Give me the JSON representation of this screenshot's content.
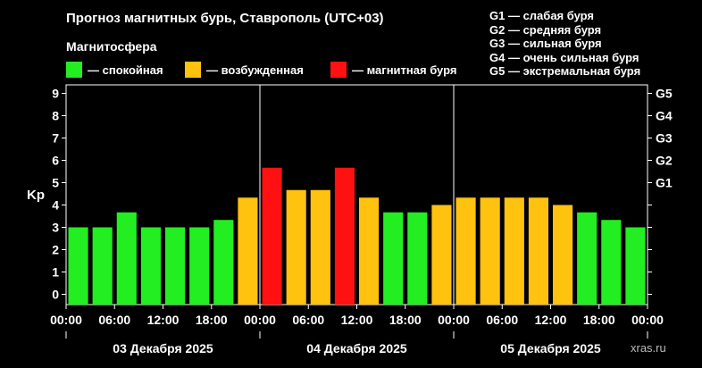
{
  "title": "Прогноз магнитных бурь, Ставрополь (UTC+03)",
  "subtitle": "Магнитосфера",
  "legend": [
    {
      "label": "— спокойная",
      "color": "#22ee22"
    },
    {
      "label": "— возбужденная",
      "color": "#ffc20e"
    },
    {
      "label": "— магнитная буря",
      "color": "#ff1111"
    }
  ],
  "g_scale": [
    {
      "label": "G1 — слабая буря"
    },
    {
      "label": "G2 — средняя буря"
    },
    {
      "label": "G3 — сильная буря"
    },
    {
      "label": "G4 — очень сильная буря"
    },
    {
      "label": "G5 — экстремальная буря"
    }
  ],
  "watermark": "xras.ru",
  "chart_data": {
    "type": "bar",
    "ylabel": "Kp",
    "ylim": [
      0,
      9.5
    ],
    "y_ticks": [
      "0",
      "1",
      "2",
      "3",
      "4",
      "5",
      "6",
      "7",
      "8",
      "9"
    ],
    "right_ticks": [
      {
        "label": "G1",
        "value": 5
      },
      {
        "label": "G2",
        "value": 6
      },
      {
        "label": "G3",
        "value": 7
      },
      {
        "label": "G4",
        "value": 8
      },
      {
        "label": "G5",
        "value": 9
      }
    ],
    "x_ticks": [
      "00:00",
      "06:00",
      "12:00",
      "18:00",
      "00:00",
      "06:00",
      "12:00",
      "18:00",
      "00:00",
      "06:00",
      "12:00",
      "18:00",
      "00:00"
    ],
    "days": [
      "03 Декабря 2025",
      "04 Декабря 2025",
      "05 Декабря 2025"
    ],
    "values": [
      3.0,
      3.0,
      3.67,
      3.0,
      3.0,
      3.0,
      3.33,
      4.33,
      5.67,
      4.67,
      4.67,
      5.67,
      4.33,
      3.67,
      3.67,
      4.0,
      4.33,
      4.33,
      4.33,
      4.33,
      4.0,
      3.67,
      3.33,
      3.0
    ],
    "levels": [
      "quiet",
      "quiet",
      "quiet",
      "quiet",
      "quiet",
      "quiet",
      "quiet",
      "active",
      "storm",
      "active",
      "active",
      "storm",
      "active",
      "quiet",
      "quiet",
      "active",
      "active",
      "active",
      "active",
      "active",
      "active",
      "quiet",
      "quiet",
      "quiet"
    ],
    "colors": {
      "quiet": "#22ee22",
      "active": "#ffc20e",
      "storm": "#ff1111"
    }
  }
}
